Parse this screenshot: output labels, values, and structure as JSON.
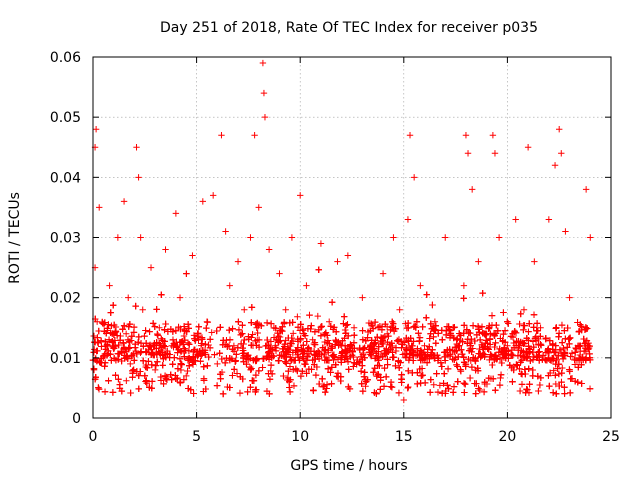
{
  "chart_data": {
    "type": "scatter",
    "title": "Day 251 of 2018, Rate Of TEC Index for receiver p035",
    "xlabel": "GPS time / hours",
    "ylabel": "ROTI / TECUs",
    "xlim": [
      0,
      25
    ],
    "ylim": [
      0,
      0.06
    ],
    "grid": true,
    "marker": "+",
    "x_ticks": [
      0,
      5,
      10,
      15,
      20,
      25
    ],
    "y_ticks": [
      0,
      0.01,
      0.02,
      0.03,
      0.04,
      0.05,
      0.06
    ],
    "x_tick_labels": [
      "0",
      "5",
      "10",
      "15",
      "20",
      "25"
    ],
    "y_tick_labels": [
      "0",
      "0.01",
      "0.02",
      "0.03",
      "0.04",
      "0.05",
      "0.06"
    ],
    "series": [
      {
        "name": "ROTI",
        "color": "#ff0000",
        "note": "dense scatter of ~5000+ samples covering 0-24 h; listed values are representative readings of the visible cloud and prominent spikes",
        "x": [
          0.05,
          0.1,
          0.15,
          0.1,
          0.2,
          0.3,
          0.5,
          0.8,
          1.0,
          1.2,
          1.5,
          1.6,
          1.7,
          1.8,
          2.1,
          2.2,
          2.3,
          2.4,
          2.6,
          2.8,
          3.0,
          3.2,
          3.5,
          3.8,
          4.0,
          4.2,
          4.5,
          4.8,
          5.0,
          5.3,
          5.5,
          5.8,
          6.0,
          6.2,
          6.4,
          6.6,
          6.8,
          7.0,
          7.3,
          7.6,
          7.8,
          7.9,
          8.0,
          8.2,
          8.25,
          8.3,
          8.5,
          8.8,
          9.0,
          9.3,
          9.6,
          9.9,
          10.0,
          10.3,
          10.6,
          11.0,
          11.4,
          11.8,
          12.0,
          12.3,
          12.6,
          13.0,
          13.5,
          14.0,
          14.2,
          14.5,
          14.8,
          15.0,
          15.2,
          15.3,
          15.5,
          15.8,
          16.0,
          16.5,
          17.0,
          17.5,
          17.9,
          18.0,
          18.1,
          18.3,
          18.6,
          19.0,
          19.3,
          19.4,
          19.6,
          20.0,
          20.4,
          20.8,
          21.0,
          21.3,
          21.6,
          22.0,
          22.3,
          22.5,
          22.6,
          22.8,
          23.0,
          23.4,
          23.8,
          24.0
        ],
        "y": [
          0.008,
          0.045,
          0.048,
          0.025,
          0.016,
          0.035,
          0.01,
          0.022,
          0.012,
          0.03,
          0.036,
          0.014,
          0.02,
          0.009,
          0.045,
          0.04,
          0.03,
          0.018,
          0.011,
          0.025,
          0.008,
          0.015,
          0.028,
          0.012,
          0.034,
          0.02,
          0.007,
          0.027,
          0.011,
          0.036,
          0.016,
          0.037,
          0.009,
          0.047,
          0.031,
          0.022,
          0.012,
          0.026,
          0.018,
          0.03,
          0.047,
          0.015,
          0.035,
          0.059,
          0.054,
          0.05,
          0.028,
          0.012,
          0.024,
          0.018,
          0.03,
          0.011,
          0.037,
          0.022,
          0.013,
          0.029,
          0.016,
          0.026,
          0.012,
          0.027,
          0.015,
          0.02,
          0.011,
          0.024,
          0.014,
          0.03,
          0.018,
          0.003,
          0.033,
          0.047,
          0.04,
          0.022,
          0.012,
          0.016,
          0.03,
          0.01,
          0.022,
          0.047,
          0.044,
          0.038,
          0.026,
          0.014,
          0.047,
          0.044,
          0.03,
          0.012,
          0.033,
          0.018,
          0.045,
          0.026,
          0.015,
          0.033,
          0.042,
          0.048,
          0.044,
          0.031,
          0.02,
          0.012,
          0.038,
          0.03
        ]
      }
    ]
  }
}
